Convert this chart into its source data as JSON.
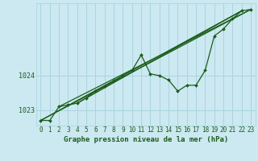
{
  "title": "Graphe pression niveau de la mer (hPa)",
  "background_color": "#cce8f0",
  "plot_bg_color": "#cce8f0",
  "grid_color": "#aad4e0",
  "line_color": "#1a5c1a",
  "marker_color": "#1a5c1a",
  "x_ticks": [
    0,
    1,
    2,
    3,
    4,
    5,
    6,
    7,
    8,
    9,
    10,
    11,
    12,
    13,
    14,
    15,
    16,
    17,
    18,
    19,
    20,
    21,
    22,
    23
  ],
  "ylim": [
    1022.55,
    1026.1
  ],
  "yticks": [
    1023,
    1024
  ],
  "main_data": [
    1022.7,
    1022.7,
    1023.1,
    1023.15,
    1023.2,
    1023.35,
    1023.55,
    1023.7,
    1023.85,
    1024.0,
    1024.15,
    1024.6,
    1024.05,
    1024.0,
    1023.87,
    1023.55,
    1023.72,
    1023.72,
    1024.15,
    1025.15,
    1025.35,
    1025.65,
    1025.88,
    1025.92
  ],
  "trend1_x": [
    0,
    23
  ],
  "trend1_y": [
    1022.7,
    1025.92
  ],
  "trend2_x": [
    0,
    22
  ],
  "trend2_y": [
    1022.7,
    1025.88
  ],
  "trend3_x": [
    2,
    23
  ],
  "trend3_y": [
    1023.1,
    1025.92
  ],
  "trend4_x": [
    4,
    22
  ],
  "trend4_y": [
    1023.2,
    1025.88
  ],
  "tick_fontsize": 5.5,
  "xlabel_fontsize": 6.5
}
